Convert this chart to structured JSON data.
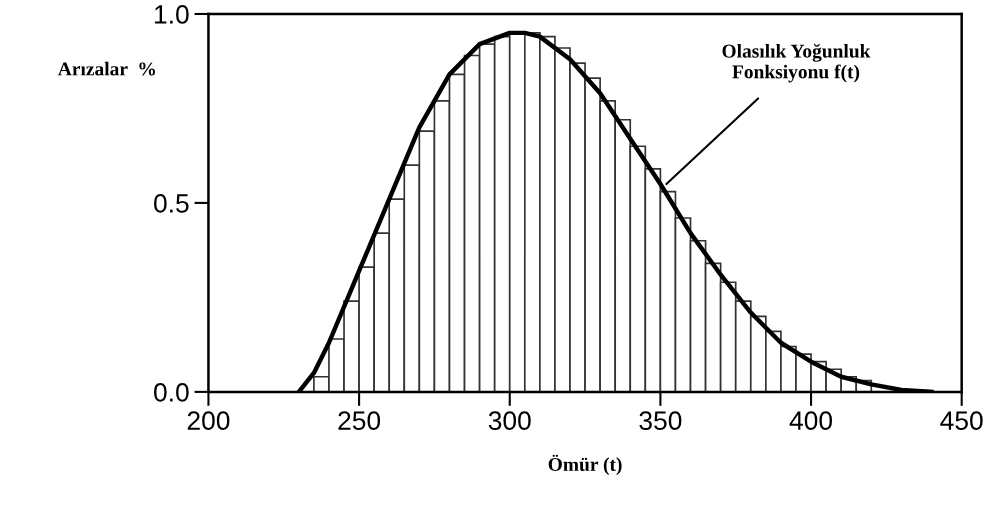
{
  "chart_data": {
    "type": "histogram",
    "xlabel": "Ömür (t)",
    "ylabel": "Arızalar  %",
    "series": [
      {
        "color": "#ffffff",
        "bins": [
          235,
          240,
          245,
          250,
          255,
          260,
          265,
          270,
          275,
          280,
          285,
          290,
          295,
          300,
          305,
          310,
          315,
          320,
          325,
          330,
          335,
          340,
          345,
          350,
          355,
          360,
          365,
          370,
          375,
          380,
          385,
          390,
          395,
          400,
          405,
          410,
          415,
          420
        ],
        "values": [
          0.04,
          0.14,
          0.24,
          0.33,
          0.42,
          0.51,
          0.6,
          0.69,
          0.77,
          0.84,
          0.89,
          0.92,
          0.94,
          0.95,
          0.95,
          0.94,
          0.91,
          0.87,
          0.83,
          0.77,
          0.72,
          0.65,
          0.59,
          0.53,
          0.46,
          0.4,
          0.34,
          0.29,
          0.24,
          0.2,
          0.16,
          0.12,
          0.1,
          0.08,
          0.06,
          0.04,
          0.03
        ]
      },
      {
        "type": "line",
        "color": "#000000",
        "x": [
          230,
          235,
          240,
          250,
          260,
          270,
          280,
          290,
          300,
          305,
          310,
          320,
          330,
          340,
          350,
          360,
          370,
          380,
          390,
          400,
          410,
          420,
          430,
          440
        ],
        "values": [
          0,
          0.05,
          0.13,
          0.32,
          0.51,
          0.7,
          0.84,
          0.92,
          0.95,
          0.95,
          0.94,
          0.88,
          0.79,
          0.67,
          0.55,
          0.42,
          0.31,
          0.21,
          0.13,
          0.08,
          0.04,
          0.02,
          0.005,
          0
        ]
      }
    ],
    "annotations": [
      {
        "text": "Olasılık Yoğunluk\nFonksiyonu f(t)",
        "x": 352,
        "y": 0.55
      }
    ],
    "xlim": [
      200,
      450
    ],
    "xticks": [
      200,
      250,
      300,
      350,
      400,
      450
    ],
    "ylim": [
      0,
      1
    ],
    "yticks": [
      {
        "value": 0,
        "label": "0.0"
      },
      {
        "value": 0.5,
        "label": "0.5"
      },
      {
        "value": 1,
        "label": "1.0"
      }
    ],
    "grid": false,
    "legend": false
  }
}
